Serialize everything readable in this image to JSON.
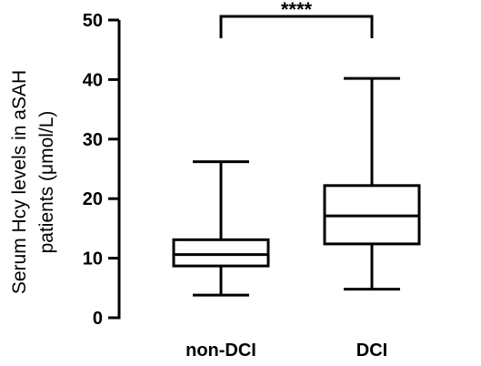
{
  "chart_data": {
    "type": "box",
    "ylabel": "Serum Hcy levels in aSAH patients (μmol/L)",
    "ylabel_lines": [
      "Serum Hcy levels in aSAH",
      "patients (μmol/L)"
    ],
    "ylim": [
      0,
      50
    ],
    "yticks": [
      0,
      10,
      20,
      30,
      40,
      50
    ],
    "yticks_labels": [
      "0",
      "10",
      "20",
      "30",
      "40",
      "50"
    ],
    "grid": false,
    "categories": [
      "non-DCI",
      "DCI"
    ],
    "boxes": [
      {
        "category": "non-DCI",
        "min": 3.8,
        "q1": 8.7,
        "median": 10.6,
        "q3": 13.1,
        "max": 26.2
      },
      {
        "category": "DCI",
        "min": 4.8,
        "q1": 12.4,
        "median": 17.1,
        "q3": 22.2,
        "max": 40.2
      }
    ],
    "significance": {
      "from": "non-DCI",
      "to": "DCI",
      "label": "****"
    },
    "colors": {
      "stroke": "#000000",
      "fill": "#ffffff"
    }
  }
}
